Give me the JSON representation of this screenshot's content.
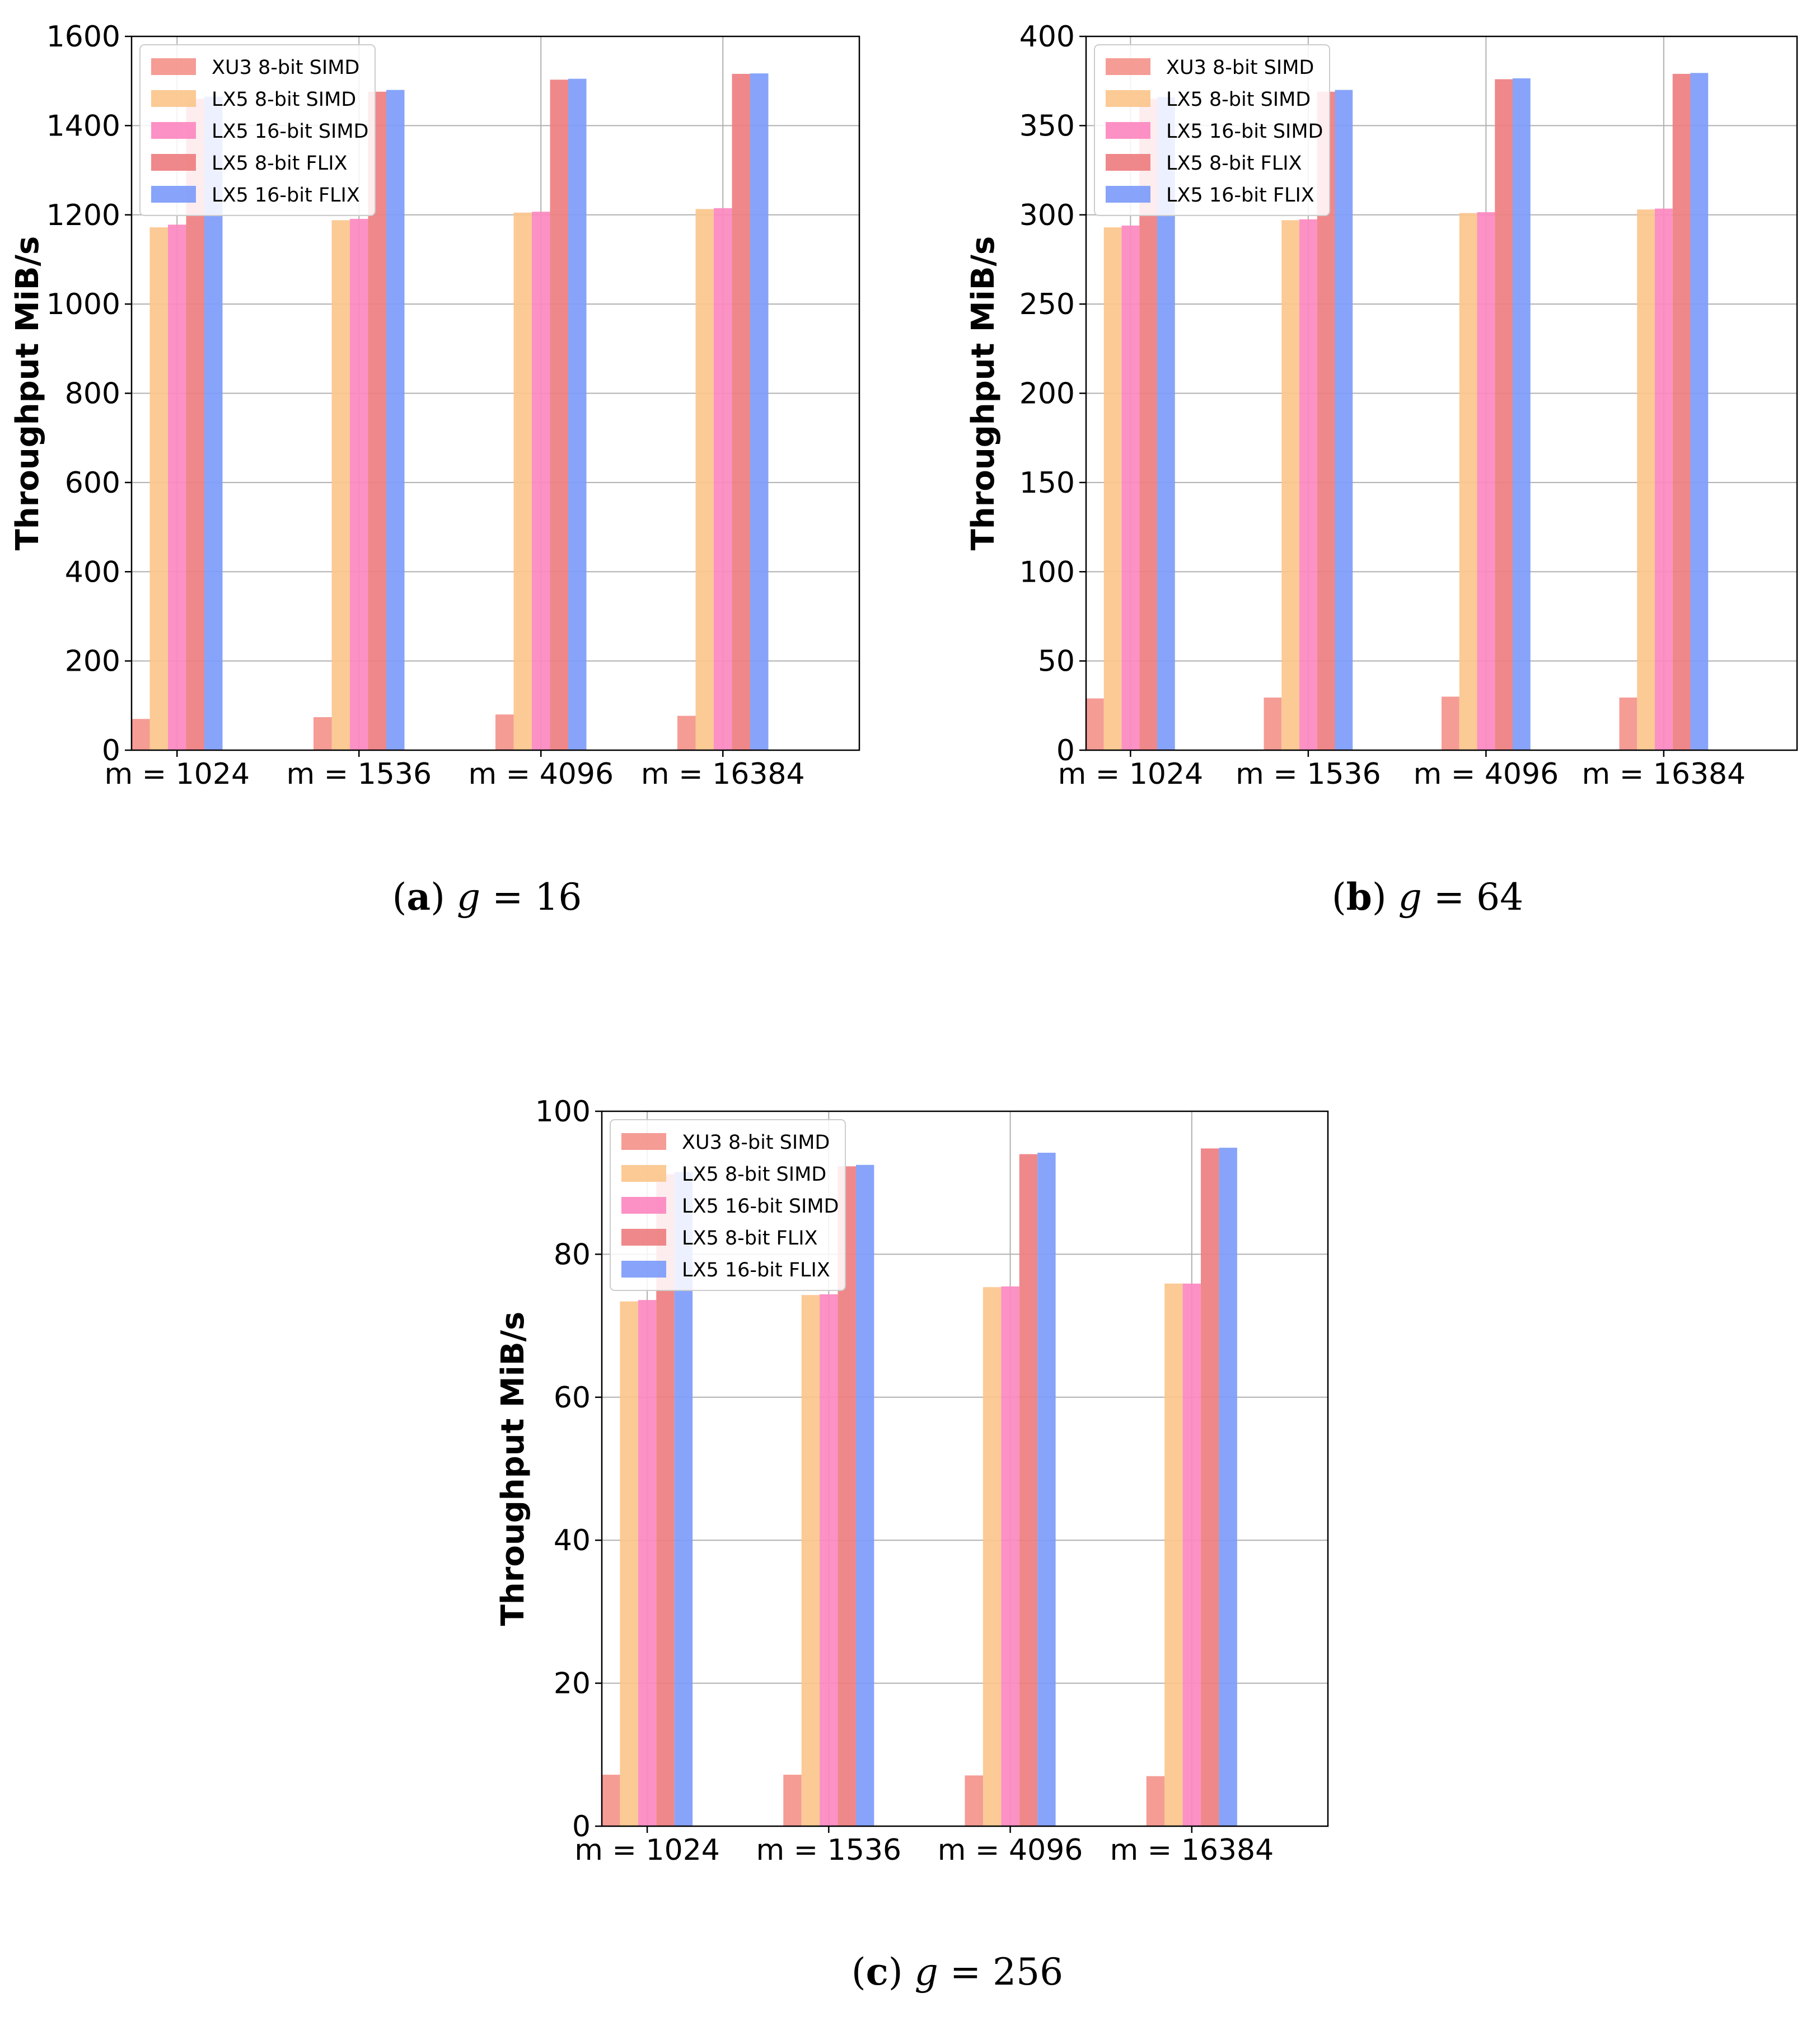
{
  "chart_data": [
    {
      "type": "bar",
      "panel": "a",
      "caption": {
        "letter": "a",
        "expression": "g = 16"
      },
      "ylabel": "Throughput MiB/s",
      "xlabel": "",
      "ylim": [
        0,
        1600
      ],
      "yticks": [
        0,
        200,
        400,
        600,
        800,
        1000,
        1200,
        1400,
        1600
      ],
      "grid": true,
      "legend_position": "top-left",
      "categories": [
        "m = 1024",
        "m = 1536",
        "m = 4096",
        "m = 16384"
      ],
      "series": [
        {
          "name": "XU3 8-bit SIMD",
          "color": "#f4948c",
          "values": [
            70,
            74,
            80,
            77
          ]
        },
        {
          "name": "LX5 8-bit SIMD",
          "color": "#fbc68c",
          "values": [
            1172,
            1188,
            1205,
            1213
          ]
        },
        {
          "name": "LX5 16-bit SIMD",
          "color": "#fc88c0",
          "values": [
            1178,
            1191,
            1207,
            1215
          ]
        },
        {
          "name": "LX5 8-bit FLIX",
          "color": "#ee7e80",
          "values": [
            1460,
            1476,
            1503,
            1516
          ]
        },
        {
          "name": "LX5 16-bit FLIX",
          "color": "#7d9cfa",
          "values": [
            1465,
            1480,
            1505,
            1517
          ]
        }
      ]
    },
    {
      "type": "bar",
      "panel": "b",
      "caption": {
        "letter": "b",
        "expression": "g = 64"
      },
      "ylabel": "Throughput MiB/s",
      "xlabel": "",
      "ylim": [
        0,
        400
      ],
      "yticks": [
        0,
        50,
        100,
        150,
        200,
        250,
        300,
        350,
        400
      ],
      "grid": true,
      "legend_position": "top-left",
      "categories": [
        "m = 1024",
        "m = 1536",
        "m = 4096",
        "m = 16384"
      ],
      "series": [
        {
          "name": "XU3 8-bit SIMD",
          "color": "#f4948c",
          "values": [
            29,
            29.5,
            30,
            29.5
          ]
        },
        {
          "name": "LX5 8-bit SIMD",
          "color": "#fbc68c",
          "values": [
            293,
            297,
            301,
            303
          ]
        },
        {
          "name": "LX5 16-bit SIMD",
          "color": "#fc88c0",
          "values": [
            294,
            297.5,
            301.5,
            303.5
          ]
        },
        {
          "name": "LX5 8-bit FLIX",
          "color": "#ee7e80",
          "values": [
            365,
            369,
            376,
            379
          ]
        },
        {
          "name": "LX5 16-bit FLIX",
          "color": "#7d9cfa",
          "values": [
            366,
            370,
            376.5,
            379.5
          ]
        }
      ]
    },
    {
      "type": "bar",
      "panel": "c",
      "caption": {
        "letter": "c",
        "expression": "g = 256"
      },
      "ylabel": "Throughput MiB/s",
      "xlabel": "",
      "ylim": [
        0,
        100
      ],
      "yticks": [
        0,
        20,
        40,
        60,
        80,
        100
      ],
      "grid": true,
      "legend_position": "top-left",
      "categories": [
        "m = 1024",
        "m = 1536",
        "m = 4096",
        "m = 16384"
      ],
      "series": [
        {
          "name": "XU3 8-bit SIMD",
          "color": "#f4948c",
          "values": [
            7.2,
            7.2,
            7.1,
            7.0
          ]
        },
        {
          "name": "LX5 8-bit SIMD",
          "color": "#fbc68c",
          "values": [
            73.4,
            74.3,
            75.4,
            75.9
          ]
        },
        {
          "name": "LX5 16-bit SIMD",
          "color": "#fc88c0",
          "values": [
            73.6,
            74.4,
            75.5,
            75.9
          ]
        },
        {
          "name": "LX5 8-bit FLIX",
          "color": "#ee7e80",
          "values": [
            91.2,
            92.3,
            94.0,
            94.8
          ]
        },
        {
          "name": "LX5 16-bit FLIX",
          "color": "#7d9cfa",
          "values": [
            91.5,
            92.5,
            94.2,
            94.9
          ]
        }
      ]
    }
  ]
}
